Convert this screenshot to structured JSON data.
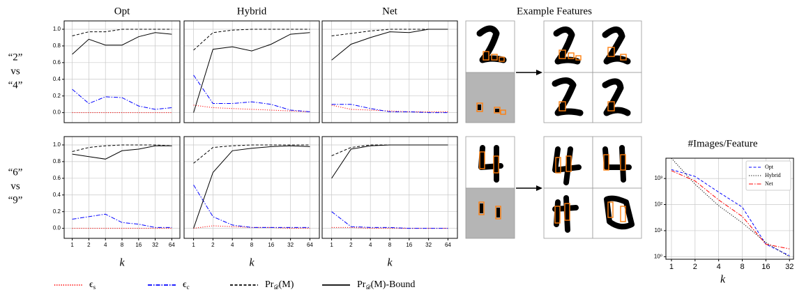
{
  "figure": {
    "row_labels": [
      [
        "“2”",
        "vs",
        "“4”"
      ],
      [
        "“6”",
        "vs",
        "“9”"
      ]
    ],
    "example_features_title": "Example Features"
  },
  "chart_data": [
    {
      "type": "line",
      "title": "Opt",
      "ylim": [
        -0.12,
        1.1
      ],
      "yticks": [
        {
          "value": 0,
          "label": "0.0"
        },
        {
          "value": 0.2,
          "label": "0.2"
        },
        {
          "value": 0.4,
          "label": "0.4"
        },
        {
          "value": 0.6,
          "label": "0.6"
        },
        {
          "value": 0.8,
          "label": "0.8"
        },
        {
          "value": 1,
          "label": "1.0"
        }
      ],
      "grid": true,
      "series": [
        {
          "name": "ϵs",
          "color": "#ff0000",
          "linestyle": "dotted",
          "values": [
            0,
            0,
            0,
            0,
            0,
            0,
            0
          ]
        },
        {
          "name": "ϵc",
          "color": "#0000ff",
          "linestyle": "dashdot",
          "values": [
            0.28,
            0.11,
            0.19,
            0.18,
            0.08,
            0.04,
            0.06
          ]
        },
        {
          "name": "Pr𝒟(M)",
          "color": "#000000",
          "linestyle": "dashed",
          "values": [
            0.92,
            0.97,
            0.97,
            1,
            1,
            1,
            1
          ]
        },
        {
          "name": "Pr𝒟(M)-Bound",
          "color": "#000000",
          "linestyle": "solid",
          "values": [
            0.7,
            0.88,
            0.81,
            0.81,
            0.91,
            0.96,
            0.94
          ]
        }
      ]
    },
    {
      "type": "line",
      "title": "Hybrid",
      "ylim": [
        -0.12,
        1.1
      ],
      "yticks": [
        0,
        0.2,
        0.4,
        0.6,
        0.8,
        1
      ],
      "grid": true,
      "series": [
        {
          "name": "ϵs",
          "color": "#ff0000",
          "linestyle": "dotted",
          "values": [
            0.09,
            0.06,
            0.05,
            0.04,
            0.03,
            0.02,
            0.01
          ]
        },
        {
          "name": "ϵc",
          "color": "#0000ff",
          "linestyle": "dashdot",
          "values": [
            0.45,
            0.11,
            0.11,
            0.13,
            0.1,
            0.03,
            0.01
          ]
        },
        {
          "name": "Pr𝒟(M)",
          "color": "#000000",
          "linestyle": "dashed",
          "values": [
            0.75,
            0.96,
            0.99,
            1,
            1,
            1,
            1
          ]
        },
        {
          "name": "Pr𝒟(M)-Bound",
          "color": "#000000",
          "linestyle": "solid",
          "values": [
            0,
            0.76,
            0.79,
            0.74,
            0.82,
            0.94,
            0.96
          ]
        }
      ]
    },
    {
      "type": "line",
      "title": "Net",
      "ylim": [
        -0.12,
        1.1
      ],
      "yticks": [
        0,
        0.2,
        0.4,
        0.6,
        0.8,
        1
      ],
      "grid": true,
      "series": [
        {
          "name": "ϵs",
          "color": "#ff0000",
          "linestyle": "dotted",
          "values": [
            0.09,
            0.04,
            0.03,
            0.02,
            0.01,
            0.01,
            0.01
          ]
        },
        {
          "name": "ϵc",
          "color": "#0000ff",
          "linestyle": "dashdot",
          "values": [
            0.1,
            0.1,
            0.05,
            0.01,
            0.01,
            0,
            0
          ]
        },
        {
          "name": "Pr𝒟(M)",
          "color": "#000000",
          "linestyle": "dashed",
          "values": [
            0.92,
            0.95,
            0.98,
            1,
            1,
            1,
            1
          ]
        },
        {
          "name": "Pr𝒟(M)-Bound",
          "color": "#000000",
          "linestyle": "solid",
          "values": [
            0.63,
            0.82,
            0.9,
            0.97,
            0.96,
            1,
            1
          ]
        }
      ]
    },
    {
      "type": "line",
      "x_label": "k",
      "categories": [
        "1",
        "2",
        "4",
        "8",
        "16",
        "32",
        "64"
      ],
      "ylim": [
        -0.12,
        1.1
      ],
      "yticks": [
        {
          "value": 0,
          "label": "0.0"
        },
        {
          "value": 0.2,
          "label": "0.2"
        },
        {
          "value": 0.4,
          "label": "0.4"
        },
        {
          "value": 0.6,
          "label": "0.6"
        },
        {
          "value": 0.8,
          "label": "0.8"
        },
        {
          "value": 1,
          "label": "1.0"
        }
      ],
      "grid": true,
      "series": [
        {
          "name": "ϵs",
          "color": "#ff0000",
          "linestyle": "dotted",
          "values": [
            0,
            0,
            0,
            0,
            0,
            0,
            0
          ]
        },
        {
          "name": "ϵc",
          "color": "#0000ff",
          "linestyle": "dashdot",
          "values": [
            0.11,
            0.14,
            0.17,
            0.07,
            0.05,
            0.01,
            0.01
          ]
        },
        {
          "name": "Pr𝒟(M)",
          "color": "#000000",
          "linestyle": "dashed",
          "values": [
            0.92,
            0.97,
            0.99,
            1,
            1,
            1,
            0.99
          ]
        },
        {
          "name": "Pr𝒟(M)-Bound",
          "color": "#000000",
          "linestyle": "solid",
          "values": [
            0.89,
            0.86,
            0.83,
            0.93,
            0.95,
            0.99,
            0.99
          ]
        }
      ]
    },
    {
      "type": "line",
      "x_label": "k",
      "categories": [
        "1",
        "2",
        "4",
        "8",
        "16",
        "32",
        "64"
      ],
      "ylim": [
        -0.12,
        1.1
      ],
      "yticks": [
        0,
        0.2,
        0.4,
        0.6,
        0.8,
        1
      ],
      "grid": true,
      "series": [
        {
          "name": "ϵs",
          "color": "#ff0000",
          "linestyle": "dotted",
          "values": [
            0,
            0.03,
            0.02,
            0.01,
            0.01,
            0,
            0
          ]
        },
        {
          "name": "ϵc",
          "color": "#0000ff",
          "linestyle": "dashdot",
          "values": [
            0.52,
            0.14,
            0.04,
            0.01,
            0.01,
            0.01,
            0.01
          ]
        },
        {
          "name": "Pr𝒟(M)",
          "color": "#000000",
          "linestyle": "dashed",
          "values": [
            0.78,
            0.97,
            0.99,
            1,
            1,
            1,
            1
          ]
        },
        {
          "name": "Pr𝒟(M)-Bound",
          "color": "#000000",
          "linestyle": "solid",
          "values": [
            0,
            0.67,
            0.93,
            0.96,
            0.98,
            0.99,
            0.98
          ]
        }
      ]
    },
    {
      "type": "line",
      "x_label": "k",
      "categories": [
        "1",
        "2",
        "4",
        "8",
        "16",
        "32",
        "64"
      ],
      "ylim": [
        -0.12,
        1.1
      ],
      "yticks": [
        0,
        0.2,
        0.4,
        0.6,
        0.8,
        1
      ],
      "grid": true,
      "series": [
        {
          "name": "ϵs",
          "color": "#ff0000",
          "linestyle": "dotted",
          "values": [
            0.01,
            0.01,
            0,
            0,
            0,
            0,
            0
          ]
        },
        {
          "name": "ϵc",
          "color": "#0000ff",
          "linestyle": "dashdot",
          "values": [
            0.2,
            0.02,
            0.01,
            0.01,
            0,
            0,
            0
          ]
        },
        {
          "name": "Pr𝒟(M)",
          "color": "#000000",
          "linestyle": "dashed",
          "values": [
            0.87,
            0.97,
            1,
            1,
            1,
            1,
            1
          ]
        },
        {
          "name": "Pr𝒟(M)-Bound",
          "color": "#000000",
          "linestyle": "solid",
          "values": [
            0.6,
            0.95,
            0.99,
            1,
            1,
            1,
            1
          ]
        }
      ]
    },
    {
      "type": "logline",
      "title": "#Images/Feature",
      "x_label": "k",
      "x": [
        1,
        2,
        4,
        8,
        16,
        32
      ],
      "xlim": [
        0.85,
        36
      ],
      "xticks": [
        1,
        2,
        4,
        8,
        16,
        32
      ],
      "x_log_base": 2,
      "ylim": [
        0.8,
        6000
      ],
      "y_log_base": 10,
      "yticks": [
        {
          "value": 1,
          "label": "10⁰"
        },
        {
          "value": 10,
          "label": "10¹"
        },
        {
          "value": 100,
          "label": "10²"
        },
        {
          "value": 1000,
          "label": "10³"
        }
      ],
      "grid": true,
      "legend": "upper right",
      "series": [
        {
          "name": "Opt",
          "color": "#0000ff",
          "linestyle": "dashed",
          "values": [
            2200,
            1200,
            300,
            80,
            3,
            1.1
          ]
        },
        {
          "name": "Hybrid",
          "color": "#000000",
          "linestyle": "dotted",
          "values": [
            6000,
            600,
            90,
            20,
            3.5,
            1
          ]
        },
        {
          "name": "Net",
          "color": "#ff0000",
          "linestyle": "dashdot",
          "values": [
            2000,
            800,
            150,
            35,
            3,
            2
          ]
        }
      ]
    }
  ]
}
